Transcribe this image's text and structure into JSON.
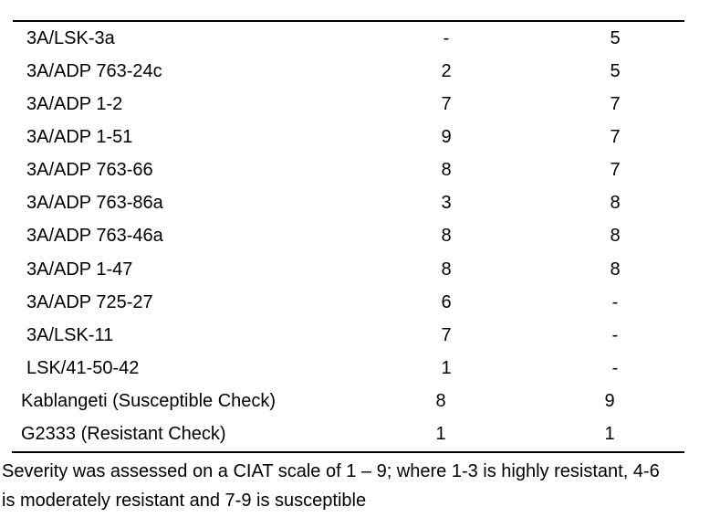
{
  "table": {
    "rows": [
      {
        "name": "3A/LSK-3a",
        "s1": "-",
        "s2": "5"
      },
      {
        "name": "3A/ADP 763-24c",
        "s1": "2",
        "s2": "5"
      },
      {
        "name": "3A/ADP 1-2",
        "s1": "7",
        "s2": "7"
      },
      {
        "name": "3A/ADP 1-51",
        "s1": "9",
        "s2": "7"
      },
      {
        "name": "3A/ADP 763-66",
        "s1": "8",
        "s2": "7"
      },
      {
        "name": "3A/ADP 763-86a",
        "s1": "3",
        "s2": "8"
      },
      {
        "name": "3A/ADP 763-46a",
        "s1": "8",
        "s2": "8"
      },
      {
        "name": "3A/ADP 1-47",
        "s1": "8",
        "s2": "8"
      },
      {
        "name": "3A/ADP 725-27",
        "s1": "6",
        "s2": "-"
      },
      {
        "name": "3A/LSK-11",
        "s1": "7",
        "s2": "-"
      },
      {
        "name": "LSK/41-50-42",
        "s1": "1",
        "s2": "-"
      },
      {
        "name": "Kablangeti (Susceptible Check)",
        "s1": "8",
        "s2": "9"
      },
      {
        "name": "G2333 (Resistant Check)",
        "s1": "1",
        "s2": "1"
      }
    ]
  },
  "footnote": {
    "line1": "Severity was assessed on a CIAT scale of 1 – 9; where 1-3 is highly resistant, 4-6",
    "line2": "is moderately resistant and 7-9 is susceptible"
  },
  "colors": {
    "text": "#000000",
    "background": "#ffffff",
    "rule": "#000000"
  }
}
